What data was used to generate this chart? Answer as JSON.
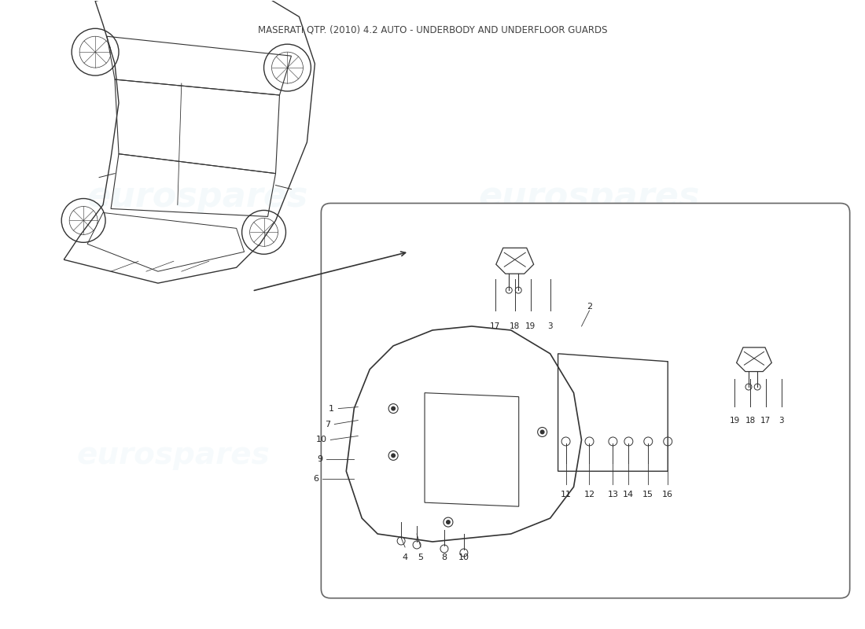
{
  "title": "MASERATI QTP. (2010) 4.2 AUTO - UNDERBODY AND UNDERFLOOR GUARDS",
  "background_color": "#ffffff",
  "watermark_text": "eurospares",
  "watermark_color": "#d0e8f0",
  "diagram_box_color": "#888888",
  "line_color": "#333333",
  "text_color": "#222222",
  "part_numbers_main": [
    "1",
    "7",
    "10",
    "9",
    "6",
    "4",
    "5",
    "8",
    "10",
    "2",
    "11",
    "12",
    "13",
    "14",
    "15",
    "16"
  ],
  "part_numbers_top_bracket": [
    "17",
    "18",
    "19",
    "3"
  ],
  "part_numbers_right_bracket": [
    "19",
    "18",
    "17",
    "3"
  ]
}
